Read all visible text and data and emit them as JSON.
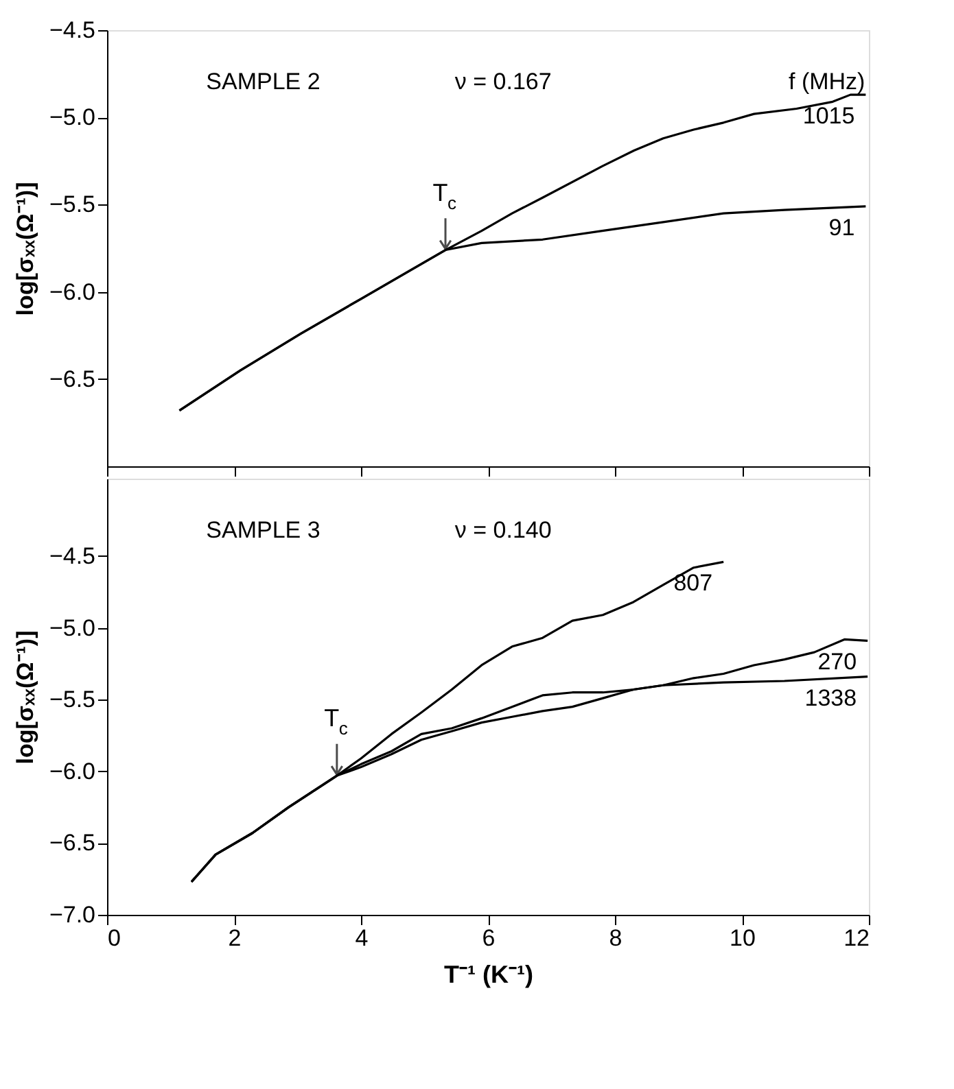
{
  "chart_data": [
    {
      "type": "line",
      "xlim": [
        0,
        12
      ],
      "xticks": [
        0,
        2,
        4,
        6,
        8,
        10,
        12
      ],
      "ylim": [
        -7.0,
        -4.5
      ],
      "yticks": [
        -4.5,
        {
          "value": -5.0,
          "label": "−5.0"
        },
        -5.5,
        {
          "value": -6.0,
          "label": "−6.0"
        },
        -6.5
      ],
      "ylabel": "log[σₓₓ(Ω⁻¹)]",
      "tick_labels": "y",
      "grid": false,
      "legend": false,
      "annotations": [
        "SAMPLE 2",
        "ν = 0.167",
        "f (MHz)",
        {
          "text": "T$_{c}$",
          "x": 5.33,
          "y": -5.76
        }
      ],
      "series": [
        {
          "name": "1015",
          "color": "#000000",
          "x": [
            1.14,
            2.1,
            3.05,
            4.0,
            4.76,
            5.33,
            5.9,
            6.38,
            6.86,
            7.8,
            8.3,
            8.76,
            9.24,
            9.71,
            10.19,
            10.86,
            11.43,
            11.71,
            11.95
          ],
          "values": [
            -6.68,
            -6.45,
            -6.24,
            -6.04,
            -5.88,
            -5.76,
            -5.65,
            -5.55,
            -5.46,
            -5.28,
            -5.19,
            -5.12,
            -5.07,
            -5.03,
            -4.98,
            -4.95,
            -4.91,
            -4.87,
            -4.87
          ]
        },
        {
          "name": "91",
          "color": "#000000",
          "x": [
            1.14,
            2.1,
            3.05,
            4.0,
            4.76,
            5.33,
            5.9,
            6.86,
            7.8,
            8.76,
            9.71,
            10.67,
            11.95
          ],
          "values": [
            -6.68,
            -6.45,
            -6.24,
            -6.04,
            -5.88,
            -5.76,
            -5.72,
            -5.7,
            -5.65,
            -5.6,
            -5.55,
            -5.53,
            -5.51
          ]
        }
      ]
    },
    {
      "type": "line",
      "xlim": [
        0,
        12
      ],
      "xticks": [
        0,
        2,
        4,
        6,
        8,
        10,
        12
      ],
      "ylim": [
        -7.0,
        -3.96
      ],
      "yticks": [
        -4.5,
        {
          "value": -5.0,
          "label": "−5.0"
        },
        -5.5,
        {
          "value": -6.0,
          "label": "−6.0"
        },
        -6.5,
        {
          "value": -7.0,
          "label": "−7.0"
        }
      ],
      "xlabel": "T⁻¹ (K⁻¹)",
      "ylabel": "log[σₓₓ(Ω⁻¹)]",
      "grid": false,
      "legend": false,
      "annotations": [
        "SAMPLE 3",
        "ν = 0.140",
        {
          "text": "T$_{c}$",
          "x": 3.62,
          "y": -6.03
        }
      ],
      "series": [
        {
          "name": "807",
          "color": "#000000",
          "x": [
            1.33,
            1.71,
            2.29,
            2.86,
            3.24,
            3.62,
            4.0,
            4.48,
            4.95,
            5.43,
            5.9,
            6.38,
            6.86,
            7.33,
            7.81,
            8.29,
            8.76,
            9.24,
            9.71
          ],
          "values": [
            -6.77,
            -6.58,
            -6.43,
            -6.25,
            -6.14,
            -6.03,
            -5.91,
            -5.74,
            -5.59,
            -5.43,
            -5.26,
            -5.13,
            -5.07,
            -4.95,
            -4.91,
            -4.82,
            -4.7,
            -4.58,
            -4.54
          ]
        },
        {
          "name": "270",
          "color": "#000000",
          "x": [
            1.33,
            1.71,
            2.29,
            2.86,
            3.24,
            3.62,
            4.0,
            4.48,
            4.95,
            5.43,
            5.9,
            6.38,
            6.86,
            7.33,
            7.81,
            8.29,
            8.76,
            9.24,
            9.71,
            10.19,
            10.67,
            11.14,
            11.62,
            11.98
          ],
          "values": [
            -6.77,
            -6.58,
            -6.43,
            -6.25,
            -6.14,
            -6.03,
            -5.97,
            -5.88,
            -5.78,
            -5.72,
            -5.66,
            -5.62,
            -5.58,
            -5.55,
            -5.49,
            -5.43,
            -5.4,
            -5.35,
            -5.32,
            -5.26,
            -5.22,
            -5.17,
            -5.08,
            -5.09
          ]
        },
        {
          "name": "1338",
          "color": "#000000",
          "x": [
            1.33,
            1.71,
            2.29,
            2.86,
            3.24,
            3.62,
            4.0,
            4.48,
            4.95,
            5.43,
            5.9,
            6.38,
            6.86,
            7.33,
            7.81,
            8.29,
            8.76,
            9.71,
            10.67,
            11.98
          ],
          "values": [
            -6.77,
            -6.58,
            -6.43,
            -6.25,
            -6.14,
            -6.03,
            -5.95,
            -5.86,
            -5.74,
            -5.7,
            -5.63,
            -5.55,
            -5.47,
            -5.45,
            -5.45,
            -5.43,
            -5.4,
            -5.38,
            -5.37,
            -5.34
          ]
        }
      ]
    }
  ]
}
